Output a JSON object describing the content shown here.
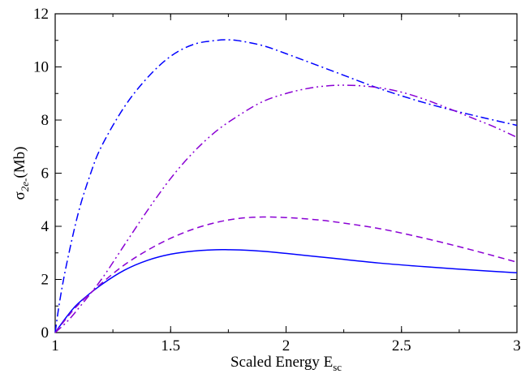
{
  "chart_data": {
    "type": "line",
    "xlabel": "Scaled Energy E",
    "xlabel_sub": "sc",
    "ylabel": "σ",
    "ylabel_sub": "2e-",
    "ylabel_unit": "(Mb)",
    "xlim": [
      1,
      3
    ],
    "ylim": [
      0,
      12
    ],
    "x_ticks": [
      "1",
      "1.5",
      "2",
      "2.5",
      "3"
    ],
    "y_ticks": [
      "0",
      "2",
      "4",
      "6",
      "8",
      "10",
      "12"
    ],
    "grid": false,
    "legend": "none",
    "series": [
      {
        "style": "solid",
        "color": "#0000ff",
        "x": [
          1.0,
          1.05,
          1.1,
          1.2,
          1.3,
          1.4,
          1.5,
          1.6,
          1.7,
          1.75,
          1.8,
          1.9,
          2.0,
          2.2,
          2.4,
          2.6,
          2.8,
          3.0
        ],
        "y": [
          0.0,
          0.6,
          1.1,
          1.8,
          2.35,
          2.72,
          2.95,
          3.07,
          3.12,
          3.12,
          3.11,
          3.06,
          2.98,
          2.8,
          2.62,
          2.48,
          2.36,
          2.25
        ]
      },
      {
        "style": "dashed",
        "color": "#8a00d4",
        "x": [
          1.0,
          1.05,
          1.1,
          1.2,
          1.3,
          1.4,
          1.5,
          1.6,
          1.7,
          1.8,
          1.9,
          2.0,
          2.1,
          2.2,
          2.4,
          2.6,
          2.8,
          3.0
        ],
        "y": [
          0.0,
          0.55,
          1.05,
          1.85,
          2.55,
          3.1,
          3.55,
          3.9,
          4.15,
          4.3,
          4.35,
          4.33,
          4.27,
          4.18,
          3.92,
          3.55,
          3.12,
          2.65
        ]
      },
      {
        "style": "dash-dot",
        "color": "#0000ff",
        "x": [
          1.0,
          1.02,
          1.05,
          1.1,
          1.15,
          1.2,
          1.3,
          1.4,
          1.5,
          1.6,
          1.7,
          1.75,
          1.8,
          1.9,
          2.0,
          2.2,
          2.4,
          2.6,
          2.8,
          3.0
        ],
        "y": [
          0.0,
          1.2,
          2.6,
          4.5,
          5.9,
          7.0,
          8.5,
          9.6,
          10.4,
          10.85,
          11.0,
          11.02,
          10.98,
          10.8,
          10.5,
          9.85,
          9.2,
          8.65,
          8.2,
          7.8
        ]
      },
      {
        "style": "dash-dot-dot",
        "color": "#8a00d4",
        "x": [
          1.0,
          1.05,
          1.1,
          1.2,
          1.3,
          1.4,
          1.5,
          1.6,
          1.7,
          1.8,
          1.9,
          2.0,
          2.1,
          2.2,
          2.3,
          2.4,
          2.5,
          2.6,
          2.7,
          2.8,
          2.9,
          3.0
        ],
        "y": [
          0.0,
          0.4,
          0.9,
          2.0,
          3.3,
          4.6,
          5.8,
          6.8,
          7.6,
          8.2,
          8.7,
          9.0,
          9.2,
          9.3,
          9.3,
          9.22,
          9.05,
          8.78,
          8.45,
          8.1,
          7.75,
          7.35
        ]
      }
    ]
  }
}
